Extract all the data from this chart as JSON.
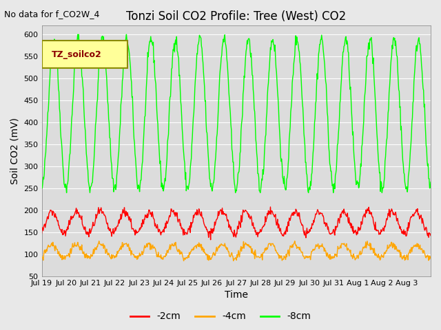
{
  "title": "Tonzi Soil CO2 Profile: Tree (West) CO2",
  "no_data_text": "No data for f_CO2W_4",
  "ylabel": "Soil CO2 (mV)",
  "xlabel": "Time",
  "ylim": [
    50,
    620
  ],
  "yticks": [
    50,
    100,
    150,
    200,
    250,
    300,
    350,
    400,
    450,
    500,
    550,
    600
  ],
  "legend_label": "TZ_soilco2",
  "series": [
    {
      "label": "-2cm",
      "color": "#FF0000"
    },
    {
      "label": "-4cm",
      "color": "#FFA500"
    },
    {
      "label": "-8cm",
      "color": "#00FF00"
    }
  ],
  "fig_bg_color": "#E8E8E8",
  "plot_bg_color": "#DCDCDC",
  "x_labels": [
    "Jul 19",
    "Jul 20",
    "Jul 21",
    "Jul 22",
    "Jul 23",
    "Jul 24",
    "Jul 25",
    "Jul 26",
    "Jul 27",
    "Jul 28",
    "Jul 29",
    "Jul 30",
    "Jul 31",
    "Aug 1",
    "Aug 2",
    "Aug 3"
  ]
}
